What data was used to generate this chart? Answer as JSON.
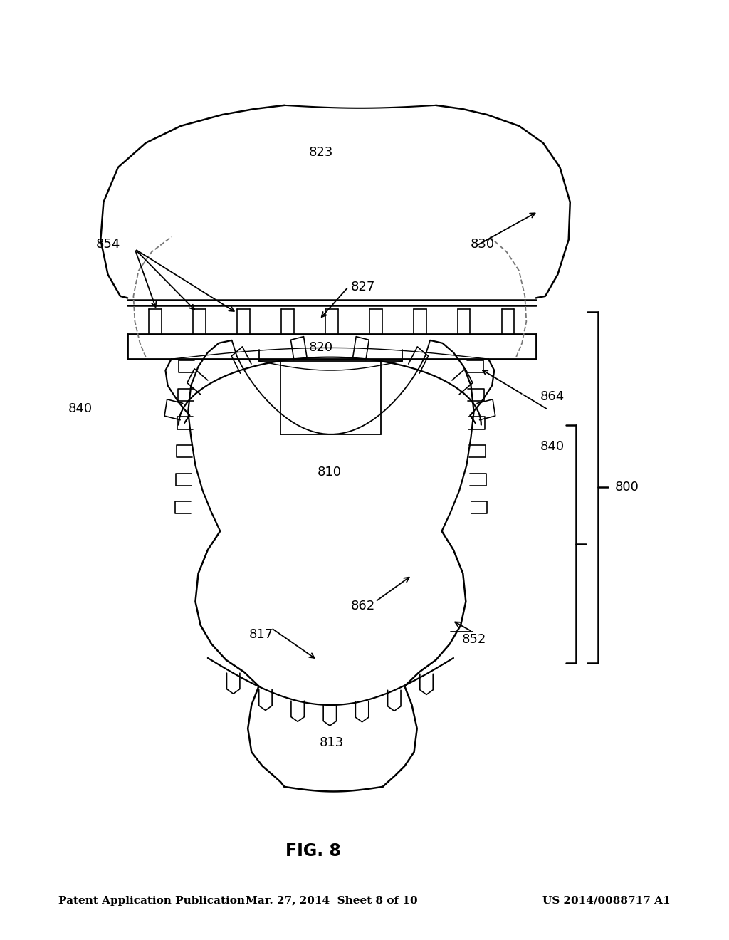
{
  "header_left": "Patent Application Publication",
  "header_center": "Mar. 27, 2014  Sheet 8 of 10",
  "header_right": "US 2014/0088717 A1",
  "fig_title": "FIG. 8",
  "bg_color": "#ffffff",
  "lc": "#000000"
}
